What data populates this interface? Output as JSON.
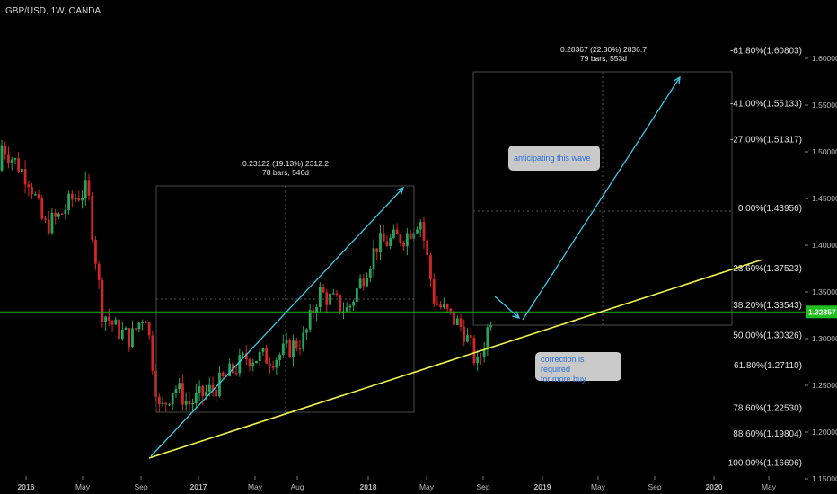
{
  "title": "GBP/USD, 1W, OANDA",
  "price_badge": "1.32857",
  "measures": [
    {
      "line1": "0.23122 (19.13%) 2312.2",
      "line2": "78 bars, 546d"
    },
    {
      "line1": "0.28367 (22.30%) 2836.7",
      "line2": "79 bars, 553d"
    }
  ],
  "annotations": [
    {
      "text": "anticipating this wave"
    },
    {
      "text1": "correction is required",
      "text2": "for more buy"
    }
  ],
  "colors": {
    "background": "#000000",
    "bull": "#26a65b",
    "bear": "#d32626",
    "trendline": "#f2f24a",
    "arrow": "#3cc8e6",
    "price_line": "#1fbf1f",
    "fib_text": "#e0e0e0",
    "axis_text": "#b8b8b8"
  },
  "chart_data": {
    "type": "candlestick",
    "symbol": "GBP/USD",
    "timeframe": "1W",
    "source": "OANDA",
    "x_ticks": [
      "2016",
      "May",
      "Sep",
      "2017",
      "May",
      "Aug",
      "2018",
      "May",
      "Sep",
      "2019",
      "May",
      "Sep",
      "2020",
      "May"
    ],
    "y_ticks": [
      "1.60000",
      "1.55000",
      "1.50000",
      "1.45000",
      "1.40000",
      "1.35000",
      "1.30000",
      "1.25000",
      "1.20000",
      "1.15000"
    ],
    "ylim": [
      1.15,
      1.62
    ],
    "current_price": 1.32857,
    "fib_levels": [
      {
        "label": "-61.80%(1.60803)",
        "price": 1.60803
      },
      {
        "label": "-41.00%(1.55133)",
        "price": 1.55133
      },
      {
        "label": "-27.00%(1.51317)",
        "price": 1.51317
      },
      {
        "label": "0.00%(1.43956)",
        "price": 1.43956
      },
      {
        "label": "23.60%(1.37523)",
        "price": 1.37523
      },
      {
        "label": "38.20%(1.33543)",
        "price": 1.33543
      },
      {
        "label": "50.00%(1.30326)",
        "price": 1.30326
      },
      {
        "label": "61.80%(1.27110)",
        "price": 1.2711
      },
      {
        "label": "78.60%(1.22530)",
        "price": 1.2253
      },
      {
        "label": "88.60%(1.19804)",
        "price": 1.19804
      },
      {
        "label": "100.00%(1.16696)",
        "price": 1.16696
      }
    ],
    "close_path": [
      {
        "date": "2016-01",
        "close": 1.47
      },
      {
        "date": "2016-02",
        "close": 1.42
      },
      {
        "date": "2016-03",
        "close": 1.43
      },
      {
        "date": "2016-04",
        "close": 1.45
      },
      {
        "date": "2016-05",
        "close": 1.46
      },
      {
        "date": "2016-06",
        "close": 1.33
      },
      {
        "date": "2016-07",
        "close": 1.31
      },
      {
        "date": "2016-08",
        "close": 1.3
      },
      {
        "date": "2016-09",
        "close": 1.33
      },
      {
        "date": "2016-10",
        "close": 1.22
      },
      {
        "date": "2016-11",
        "close": 1.25
      },
      {
        "date": "2016-12",
        "close": 1.23
      },
      {
        "date": "2017-02",
        "close": 1.25
      },
      {
        "date": "2017-04",
        "close": 1.28
      },
      {
        "date": "2017-06",
        "close": 1.28
      },
      {
        "date": "2017-08",
        "close": 1.3
      },
      {
        "date": "2017-09",
        "close": 1.35
      },
      {
        "date": "2017-11",
        "close": 1.33
      },
      {
        "date": "2018-01",
        "close": 1.4
      },
      {
        "date": "2018-03",
        "close": 1.41
      },
      {
        "date": "2018-04",
        "close": 1.43
      },
      {
        "date": "2018-05",
        "close": 1.34
      },
      {
        "date": "2018-07",
        "close": 1.31
      },
      {
        "date": "2018-08",
        "close": 1.27
      },
      {
        "date": "2018-09",
        "close": 1.33
      }
    ]
  }
}
